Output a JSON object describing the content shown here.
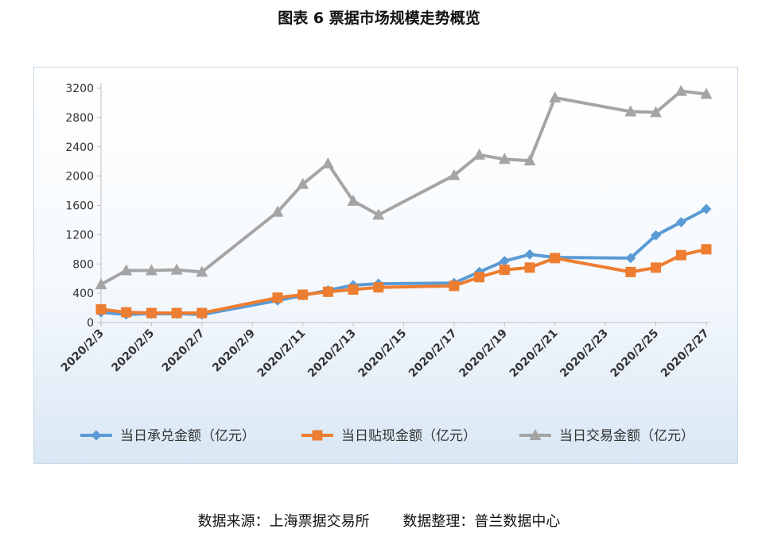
{
  "chart_data": {
    "type": "line",
    "title": "图表 6 票据市场规模走势概览",
    "x": [
      "2020/2/3",
      "2020/2/4",
      "2020/2/5",
      "2020/2/6",
      "2020/2/7",
      "2020/2/10",
      "2020/2/11",
      "2020/2/12",
      "2020/2/13",
      "2020/2/14",
      "2020/2/17",
      "2020/2/18",
      "2020/2/19",
      "2020/2/20",
      "2020/2/21",
      "2020/2/24",
      "2020/2/25",
      "2020/2/26",
      "2020/2/27"
    ],
    "x_tick_labels": [
      "2020/2/3",
      "2020/2/5",
      "2020/2/7",
      "2020/2/9",
      "2020/2/11",
      "2020/2/13",
      "2020/2/15",
      "2020/2/17",
      "2020/2/19",
      "2020/2/21",
      "2020/2/23",
      "2020/2/25",
      "2020/2/27"
    ],
    "ylim": [
      0,
      3200
    ],
    "y_ticks": [
      0,
      400,
      800,
      1200,
      1600,
      2000,
      2400,
      2800,
      3200
    ],
    "grid": false,
    "legend_position": "bottom",
    "series": [
      {
        "name": "当日承兑金额（亿元）",
        "color": "#5b9bd5",
        "marker": "diamond",
        "values": [
          140,
          110,
          120,
          120,
          110,
          300,
          370,
          440,
          510,
          530,
          540,
          690,
          840,
          930,
          890,
          880,
          1190,
          1370,
          1550
        ]
      },
      {
        "name": "当日贴现金额（亿元）",
        "color": "#ed7d31",
        "marker": "square",
        "values": [
          180,
          140,
          130,
          130,
          130,
          340,
          380,
          420,
          450,
          480,
          500,
          620,
          720,
          750,
          880,
          690,
          750,
          920,
          1000
        ]
      },
      {
        "name": "当日交易金额（亿元）",
        "color": "#a5a5a5",
        "marker": "triangle",
        "values": [
          520,
          710,
          710,
          720,
          690,
          1510,
          1890,
          2170,
          1660,
          1470,
          2010,
          2290,
          2230,
          2210,
          3070,
          2880,
          2870,
          3160,
          3120
        ]
      }
    ]
  },
  "footer": {
    "source": "数据来源：上海票据交易所",
    "compiled": "数据整理：普兰数据中心"
  }
}
